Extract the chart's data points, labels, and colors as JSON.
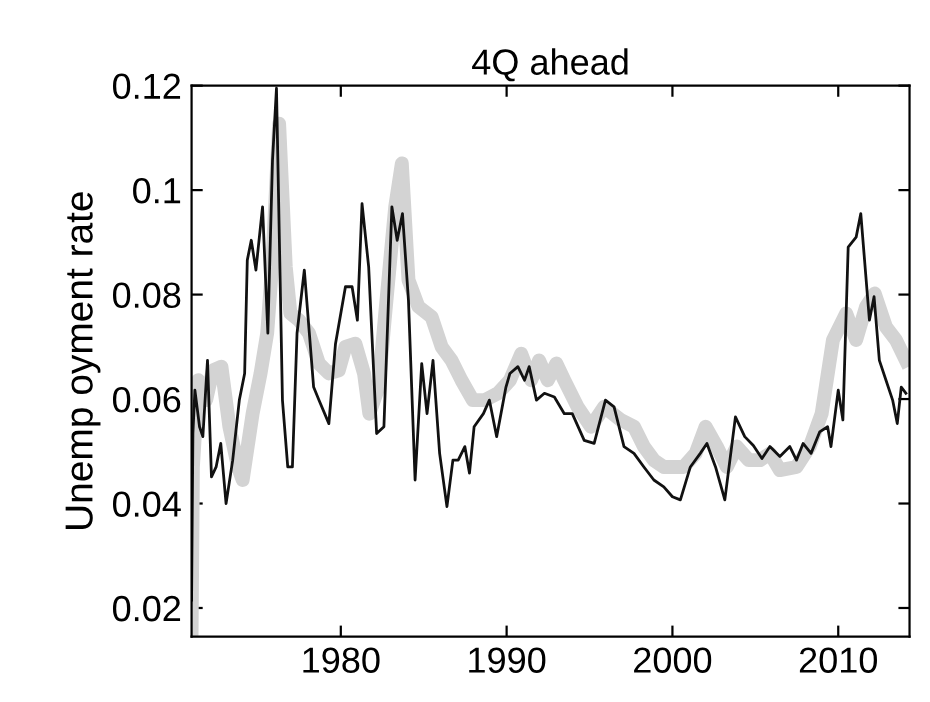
{
  "chart_data": {
    "type": "line",
    "title": "4Q ahead",
    "ylabel": "Unemp oyment rate",
    "xlim": [
      1971.0,
      2014.3
    ],
    "xticks": [
      1980,
      1990,
      2000,
      2010
    ],
    "ylim": [
      0.0145,
      0.12
    ],
    "yticks": [
      0.02,
      0.04,
      0.06,
      0.08,
      0.1,
      0.12
    ],
    "grid": false,
    "legend": false,
    "series": [
      {
        "color": "#d3d3d3",
        "x": [
          1971.0,
          1971.08,
          1971.4,
          1971.88,
          1972.28,
          1972.8,
          1973.28,
          1973.8,
          1974.08,
          1974.68,
          1975.16,
          1975.56,
          1975.88,
          1976.28,
          1976.68,
          1976.96,
          1977.48,
          1978.08,
          1978.68,
          1979.28,
          1979.88,
          1980.28,
          1980.88,
          1981.4,
          1981.72,
          1982.28,
          1982.68,
          1983.28,
          1983.68,
          1984.08,
          1984.68,
          1985.48,
          1986.08,
          1986.68,
          1987.28,
          1987.96,
          1988.68,
          1989.48,
          1990.2,
          1990.88,
          1991.48,
          1991.96,
          1992.48,
          1993.0,
          1993.48,
          1994.28,
          1995.08,
          1995.88,
          1996.88,
          1997.68,
          1998.28,
          1998.88,
          1999.48,
          2000.08,
          2000.68,
          2001.4,
          2002.0,
          2002.68,
          2003.28,
          2003.88,
          2004.6,
          2005.28,
          2005.88,
          2006.48,
          2007.48,
          2008.28,
          2009.0,
          2009.68,
          2010.48,
          2011.08,
          2011.68,
          2012.2,
          2012.88,
          2013.48,
          2014.08
        ],
        "values": [
          0.0152,
          0.047,
          0.0636,
          0.0598,
          0.0655,
          0.0662,
          0.0547,
          0.047,
          0.0445,
          0.0572,
          0.0649,
          0.0726,
          0.0866,
          0.1127,
          0.0853,
          0.0764,
          0.0751,
          0.0726,
          0.0668,
          0.0649,
          0.0655,
          0.07,
          0.0706,
          0.0649,
          0.0572,
          0.0623,
          0.0764,
          0.0968,
          0.1051,
          0.0828,
          0.0777,
          0.0757,
          0.07,
          0.0674,
          0.0636,
          0.0598,
          0.0598,
          0.0611,
          0.0636,
          0.0687,
          0.0636,
          0.0674,
          0.0636,
          0.0668,
          0.0636,
          0.0585,
          0.0547,
          0.0585,
          0.056,
          0.0547,
          0.0509,
          0.0483,
          0.047,
          0.047,
          0.047,
          0.0496,
          0.0547,
          0.0509,
          0.047,
          0.0509,
          0.0483,
          0.0483,
          0.0496,
          0.0464,
          0.047,
          0.0509,
          0.0572,
          0.0713,
          0.0764,
          0.0713,
          0.0777,
          0.0802,
          0.0738,
          0.0713,
          0.0674
        ]
      },
      {
        "color": "#111111",
        "x": [
          1971.0,
          1971.08,
          1971.2,
          1971.48,
          1971.68,
          1971.96,
          1972.2,
          1972.48,
          1972.76,
          1973.08,
          1973.48,
          1973.88,
          1974.2,
          1974.36,
          1974.6,
          1974.88,
          1975.28,
          1975.6,
          1975.88,
          1976.12,
          1976.48,
          1976.8,
          1977.08,
          1977.36,
          1977.8,
          1978.12,
          1978.36,
          1978.68,
          1979.28,
          1979.68,
          1980.28,
          1980.68,
          1981.0,
          1981.28,
          1981.68,
          1982.16,
          1982.6,
          1983.08,
          1983.4,
          1983.72,
          1984.08,
          1984.48,
          1984.88,
          1985.2,
          1985.56,
          1985.96,
          1986.4,
          1986.76,
          1987.08,
          1987.48,
          1987.76,
          1988.04,
          1988.6,
          1988.96,
          1989.4,
          1989.96,
          1990.2,
          1990.68,
          1991.08,
          1991.36,
          1991.8,
          1992.28,
          1992.88,
          1993.48,
          1993.96,
          1994.68,
          1995.28,
          1995.96,
          1996.48,
          1997.08,
          1997.68,
          1998.28,
          1998.88,
          1999.48,
          2000.0,
          2000.48,
          2001.08,
          2001.68,
          2002.08,
          2002.6,
          2003.16,
          2003.8,
          2004.36,
          2004.88,
          2005.4,
          2005.88,
          2006.48,
          2007.08,
          2007.48,
          2007.88,
          2008.36,
          2008.88,
          2009.36,
          2009.56,
          2010.0,
          2010.28,
          2010.6,
          2011.08,
          2011.36,
          2011.88,
          2012.16,
          2012.48,
          2012.88,
          2013.28,
          2013.56,
          2013.8,
          2014.08
        ],
        "values": [
          0.0215,
          0.0534,
          0.0617,
          0.0547,
          0.0528,
          0.0674,
          0.0451,
          0.047,
          0.0515,
          0.04,
          0.0483,
          0.0598,
          0.0649,
          0.0866,
          0.0904,
          0.0847,
          0.0968,
          0.0726,
          0.1057,
          0.1195,
          0.0598,
          0.047,
          0.047,
          0.0726,
          0.0847,
          0.0719,
          0.0623,
          0.0598,
          0.0553,
          0.0706,
          0.0815,
          0.0815,
          0.0751,
          0.0974,
          0.0853,
          0.0534,
          0.0547,
          0.0968,
          0.0904,
          0.0955,
          0.0789,
          0.0445,
          0.0668,
          0.0572,
          0.0674,
          0.0496,
          0.0394,
          0.0483,
          0.0483,
          0.0509,
          0.0458,
          0.0547,
          0.0572,
          0.0598,
          0.0528,
          0.0623,
          0.0649,
          0.0662,
          0.0636,
          0.0662,
          0.0598,
          0.0611,
          0.0604,
          0.0572,
          0.0572,
          0.0521,
          0.0515,
          0.0598,
          0.0585,
          0.0509,
          0.0496,
          0.047,
          0.0445,
          0.0432,
          0.0413,
          0.0407,
          0.047,
          0.0496,
          0.0515,
          0.047,
          0.0407,
          0.0566,
          0.0528,
          0.0511,
          0.0486,
          0.0509,
          0.049,
          0.0509,
          0.0483,
          0.0515,
          0.0496,
          0.0537,
          0.0547,
          0.0509,
          0.0617,
          0.056,
          0.0891,
          0.091,
          0.0955,
          0.0751,
          0.0796,
          0.0674,
          0.0636,
          0.0598,
          0.0553,
          0.0623,
          0.0611
        ]
      }
    ]
  }
}
